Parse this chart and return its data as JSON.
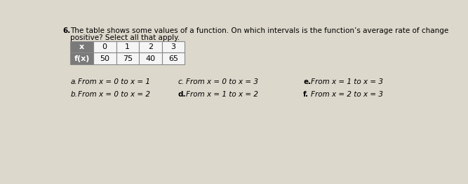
{
  "question_number": "6.",
  "question_line1": "The table shows some values of a function. On which intervals is the function’s average rate of change",
  "question_line2": "positive? Select all that apply.",
  "table": {
    "x_label": "x",
    "fx_label": "f(x)",
    "x_values": [
      "0",
      "1",
      "2",
      "3"
    ],
    "fx_values": [
      "50",
      "75",
      "40",
      "65"
    ],
    "header_bg": "#7a7a7a",
    "header_text_color": "#ffffff",
    "cell_bg": "#f5f5f5",
    "cell_border": "#888888"
  },
  "options": [
    {
      "label": "a.",
      "text": "From x = 0 to x = 1",
      "bold_label": false
    },
    {
      "label": "c.",
      "text": "From x = 0 to x = 3",
      "bold_label": false
    },
    {
      "label": "e.",
      "text": "From x = 1 to x = 3",
      "bold_label": true
    },
    {
      "label": "b.",
      "text": "From x = 0 to x = 2",
      "bold_label": false
    },
    {
      "label": "d.",
      "text": "From x = 1 to x = 2",
      "bold_label": true
    },
    {
      "label": "f.",
      "text": "From x = 2 to x = 3",
      "bold_label": true
    }
  ],
  "bg_color": "#ddd8cc",
  "font_size_question": 7.5,
  "font_size_table": 8,
  "font_size_options": 7.5
}
